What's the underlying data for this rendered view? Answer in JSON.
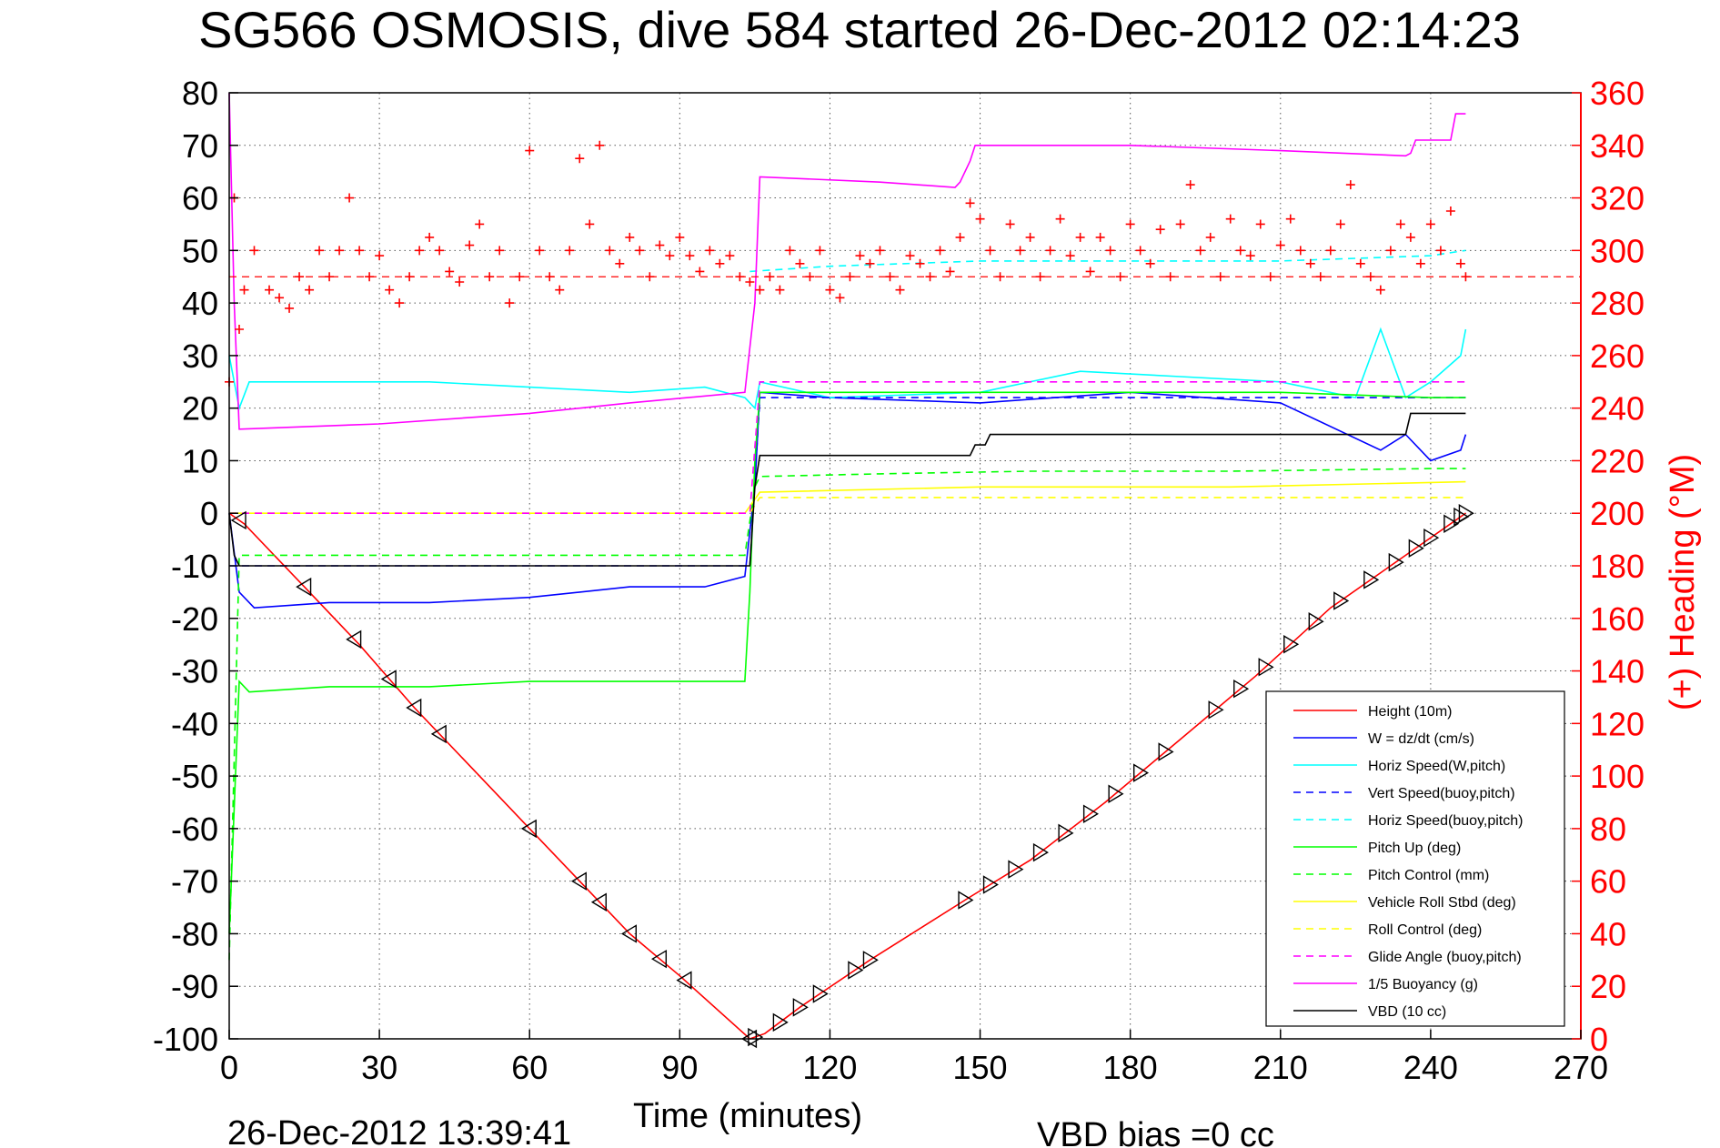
{
  "chart_data": {
    "type": "line",
    "title": "SG566 OSMOSIS, dive 584 started 26-Dec-2012 02:14:23",
    "xlabel": "Time (minutes)",
    "ylabel_right": "(+) Heading (°M)",
    "xlim": [
      0,
      270
    ],
    "ylim": [
      -100,
      80
    ],
    "ylim_right": [
      0,
      360
    ],
    "x_ticks": [
      "0",
      "30",
      "60",
      "90",
      "120",
      "150",
      "180",
      "210",
      "240",
      "270"
    ],
    "y_ticks": [
      "80",
      "70",
      "60",
      "50",
      "40",
      "30",
      "20",
      "10",
      "0",
      "-10",
      "-20",
      "-30",
      "-40",
      "-50",
      "-60",
      "-70",
      "-80",
      "-90",
      "-100"
    ],
    "y_ticks_right": [
      "360",
      "340",
      "320",
      "300",
      "280",
      "260",
      "240",
      "220",
      "200",
      "180",
      "160",
      "140",
      "120",
      "100",
      "80",
      "60",
      "40",
      "20",
      "0"
    ],
    "grid": true,
    "legend_position": "bottom-right",
    "footer_left": "26-Dec-2012 13:39:41",
    "footer_right": "VBD bias =0 cc",
    "series": [
      {
        "name": "Height (10m)",
        "color": "#ff0000",
        "style": "solid",
        "x": [
          0,
          3,
          15,
          26,
          37,
          42,
          60,
          70,
          80,
          90,
          104,
          107,
          114,
          128,
          148,
          160,
          175,
          190,
          205,
          220,
          235,
          247
        ],
        "y": [
          0,
          -2,
          -14,
          -25,
          -37,
          -42,
          -60,
          -70,
          -80,
          -88,
          -100,
          -99,
          -94,
          -85,
          -73,
          -66,
          -55,
          -43,
          -31,
          -18,
          -8,
          0
        ]
      },
      {
        "name": "W = dz/dt (cm/s)",
        "color": "#0000ff",
        "style": "solid",
        "x": [
          0,
          2,
          5,
          20,
          40,
          60,
          80,
          95,
          103,
          105,
          106,
          120,
          150,
          180,
          210,
          230,
          235,
          240,
          246,
          247
        ],
        "y": [
          0,
          -15,
          -18,
          -17,
          -17,
          -16,
          -14,
          -14,
          -12,
          5,
          23,
          22,
          21,
          23,
          21,
          12,
          15,
          10,
          12,
          15
        ]
      },
      {
        "name": "Horiz Speed(W,pitch)",
        "color": "#00ffff",
        "style": "solid",
        "x": [
          0,
          2,
          4,
          20,
          40,
          60,
          80,
          95,
          103,
          105,
          106,
          120,
          150,
          170,
          190,
          210,
          225,
          230,
          235,
          240,
          246,
          247
        ],
        "y": [
          30,
          20,
          25,
          25,
          25,
          24,
          23,
          24,
          22,
          20,
          25,
          22,
          23,
          27,
          26,
          25,
          22,
          35,
          22,
          25,
          30,
          35
        ]
      },
      {
        "name": "Vert Speed(buoy,pitch)",
        "color": "#0000ff",
        "style": "dashed",
        "x": [
          0,
          104,
          106,
          247
        ],
        "y": [
          -10,
          -10,
          22,
          22
        ]
      },
      {
        "name": "Horiz Speed(buoy,pitch)",
        "color": "#00ffff",
        "style": "dashed",
        "x": [
          104,
          120,
          150,
          180,
          210,
          240,
          247
        ],
        "y": [
          46,
          47,
          48,
          48,
          48,
          49,
          50
        ]
      },
      {
        "name": "Pitch Up (deg)",
        "color": "#00ff00",
        "style": "solid",
        "x": [
          0,
          2,
          4,
          20,
          40,
          60,
          80,
          100,
          103,
          104,
          105,
          106,
          120,
          150,
          180,
          210,
          240,
          247
        ],
        "y": [
          -80,
          -32,
          -34,
          -33,
          -33,
          -32,
          -32,
          -32,
          -32,
          -15,
          10,
          23,
          23,
          23,
          23,
          23,
          22,
          22
        ]
      },
      {
        "name": "Pitch Control (mm)",
        "color": "#00ff00",
        "style": "dashed",
        "x": [
          0,
          2,
          103,
          105,
          106,
          130,
          160,
          200,
          240,
          247
        ],
        "y": [
          -85,
          -8,
          -8,
          5,
          7,
          7.5,
          8,
          8,
          8.5,
          8.5
        ]
      },
      {
        "name": "Vehicle Roll Stbd (deg)",
        "color": "#ffff00",
        "style": "solid",
        "x": [
          0,
          50,
          103,
          106,
          150,
          200,
          247
        ],
        "y": [
          0,
          0,
          0,
          4,
          5,
          5,
          6
        ]
      },
      {
        "name": "Roll Control (deg)",
        "color": "#ffff00",
        "style": "dashed",
        "x": [
          0,
          104,
          106,
          247
        ],
        "y": [
          0,
          0,
          3,
          3
        ]
      },
      {
        "name": "Glide Angle (buoy,pitch)",
        "color": "#ff00ff",
        "style": "dashed",
        "x": [
          0,
          104,
          106,
          247
        ],
        "y": [
          0,
          0,
          25,
          25
        ]
      },
      {
        "name": "1/5 Buoyancy (g)",
        "color": "#ff00ff",
        "style": "solid",
        "x": [
          0,
          1,
          2,
          30,
          60,
          80,
          103,
          105,
          106,
          130,
          145,
          146,
          148,
          149,
          180,
          210,
          235,
          236,
          237,
          244,
          245,
          246,
          247
        ],
        "y": [
          80,
          40,
          16,
          17,
          19,
          21,
          23,
          40,
          64,
          63,
          62,
          63,
          67,
          70,
          70,
          69,
          68,
          68.5,
          71,
          71,
          76,
          76,
          76
        ]
      },
      {
        "name": "VBD (10 cc)",
        "color": "#000000",
        "style": "solid",
        "x": [
          0,
          1,
          2,
          103,
          104,
          105,
          106,
          130,
          145,
          146,
          148,
          149,
          151,
          152,
          235,
          236,
          246,
          247
        ],
        "y": [
          0,
          -8,
          -10,
          -10,
          -10,
          5,
          11,
          11,
          11,
          11,
          11,
          13,
          13,
          15,
          15,
          19,
          19,
          19
        ]
      }
    ],
    "heading": {
      "name": "(+) Heading",
      "marker": "+",
      "color": "#ff0000",
      "axis": "right",
      "mean_line": 290,
      "x": [
        0,
        1,
        2,
        3,
        5,
        8,
        10,
        12,
        14,
        16,
        18,
        20,
        22,
        24,
        26,
        28,
        30,
        32,
        34,
        36,
        38,
        40,
        42,
        44,
        46,
        48,
        50,
        52,
        54,
        56,
        58,
        60,
        62,
        64,
        66,
        68,
        70,
        72,
        74,
        76,
        78,
        80,
        82,
        84,
        86,
        88,
        90,
        92,
        94,
        96,
        98,
        100,
        102,
        104,
        106,
        108,
        110,
        112,
        114,
        116,
        118,
        120,
        122,
        124,
        126,
        128,
        130,
        132,
        134,
        136,
        138,
        140,
        142,
        144,
        146,
        148,
        150,
        152,
        154,
        156,
        158,
        160,
        162,
        164,
        166,
        168,
        170,
        172,
        174,
        176,
        178,
        180,
        182,
        184,
        186,
        188,
        190,
        192,
        194,
        196,
        198,
        200,
        202,
        204,
        206,
        208,
        210,
        212,
        214,
        216,
        218,
        220,
        222,
        224,
        226,
        228,
        230,
        232,
        234,
        236,
        238,
        240,
        242,
        244,
        246,
        247
      ],
      "y": [
        250,
        320,
        270,
        285,
        300,
        285,
        282,
        278,
        290,
        285,
        300,
        290,
        300,
        320,
        300,
        290,
        298,
        285,
        280,
        290,
        300,
        305,
        300,
        292,
        288,
        302,
        310,
        290,
        300,
        280,
        290,
        338,
        300,
        290,
        285,
        300,
        335,
        310,
        340,
        300,
        295,
        305,
        300,
        290,
        302,
        298,
        305,
        298,
        292,
        300,
        295,
        298,
        290,
        288,
        285,
        290,
        285,
        300,
        295,
        290,
        300,
        285,
        282,
        290,
        298,
        295,
        300,
        290,
        285,
        298,
        295,
        290,
        300,
        292,
        305,
        318,
        312,
        300,
        290,
        310,
        300,
        305,
        290,
        300,
        312,
        298,
        305,
        292,
        305,
        300,
        290,
        310,
        300,
        295,
        308,
        290,
        310,
        325,
        300,
        305,
        290,
        312,
        300,
        298,
        310,
        290,
        302,
        312,
        300,
        295,
        290,
        300,
        310,
        325,
        295,
        290,
        285,
        300,
        310,
        305,
        295,
        310,
        300,
        315,
        295,
        290
      ]
    }
  }
}
